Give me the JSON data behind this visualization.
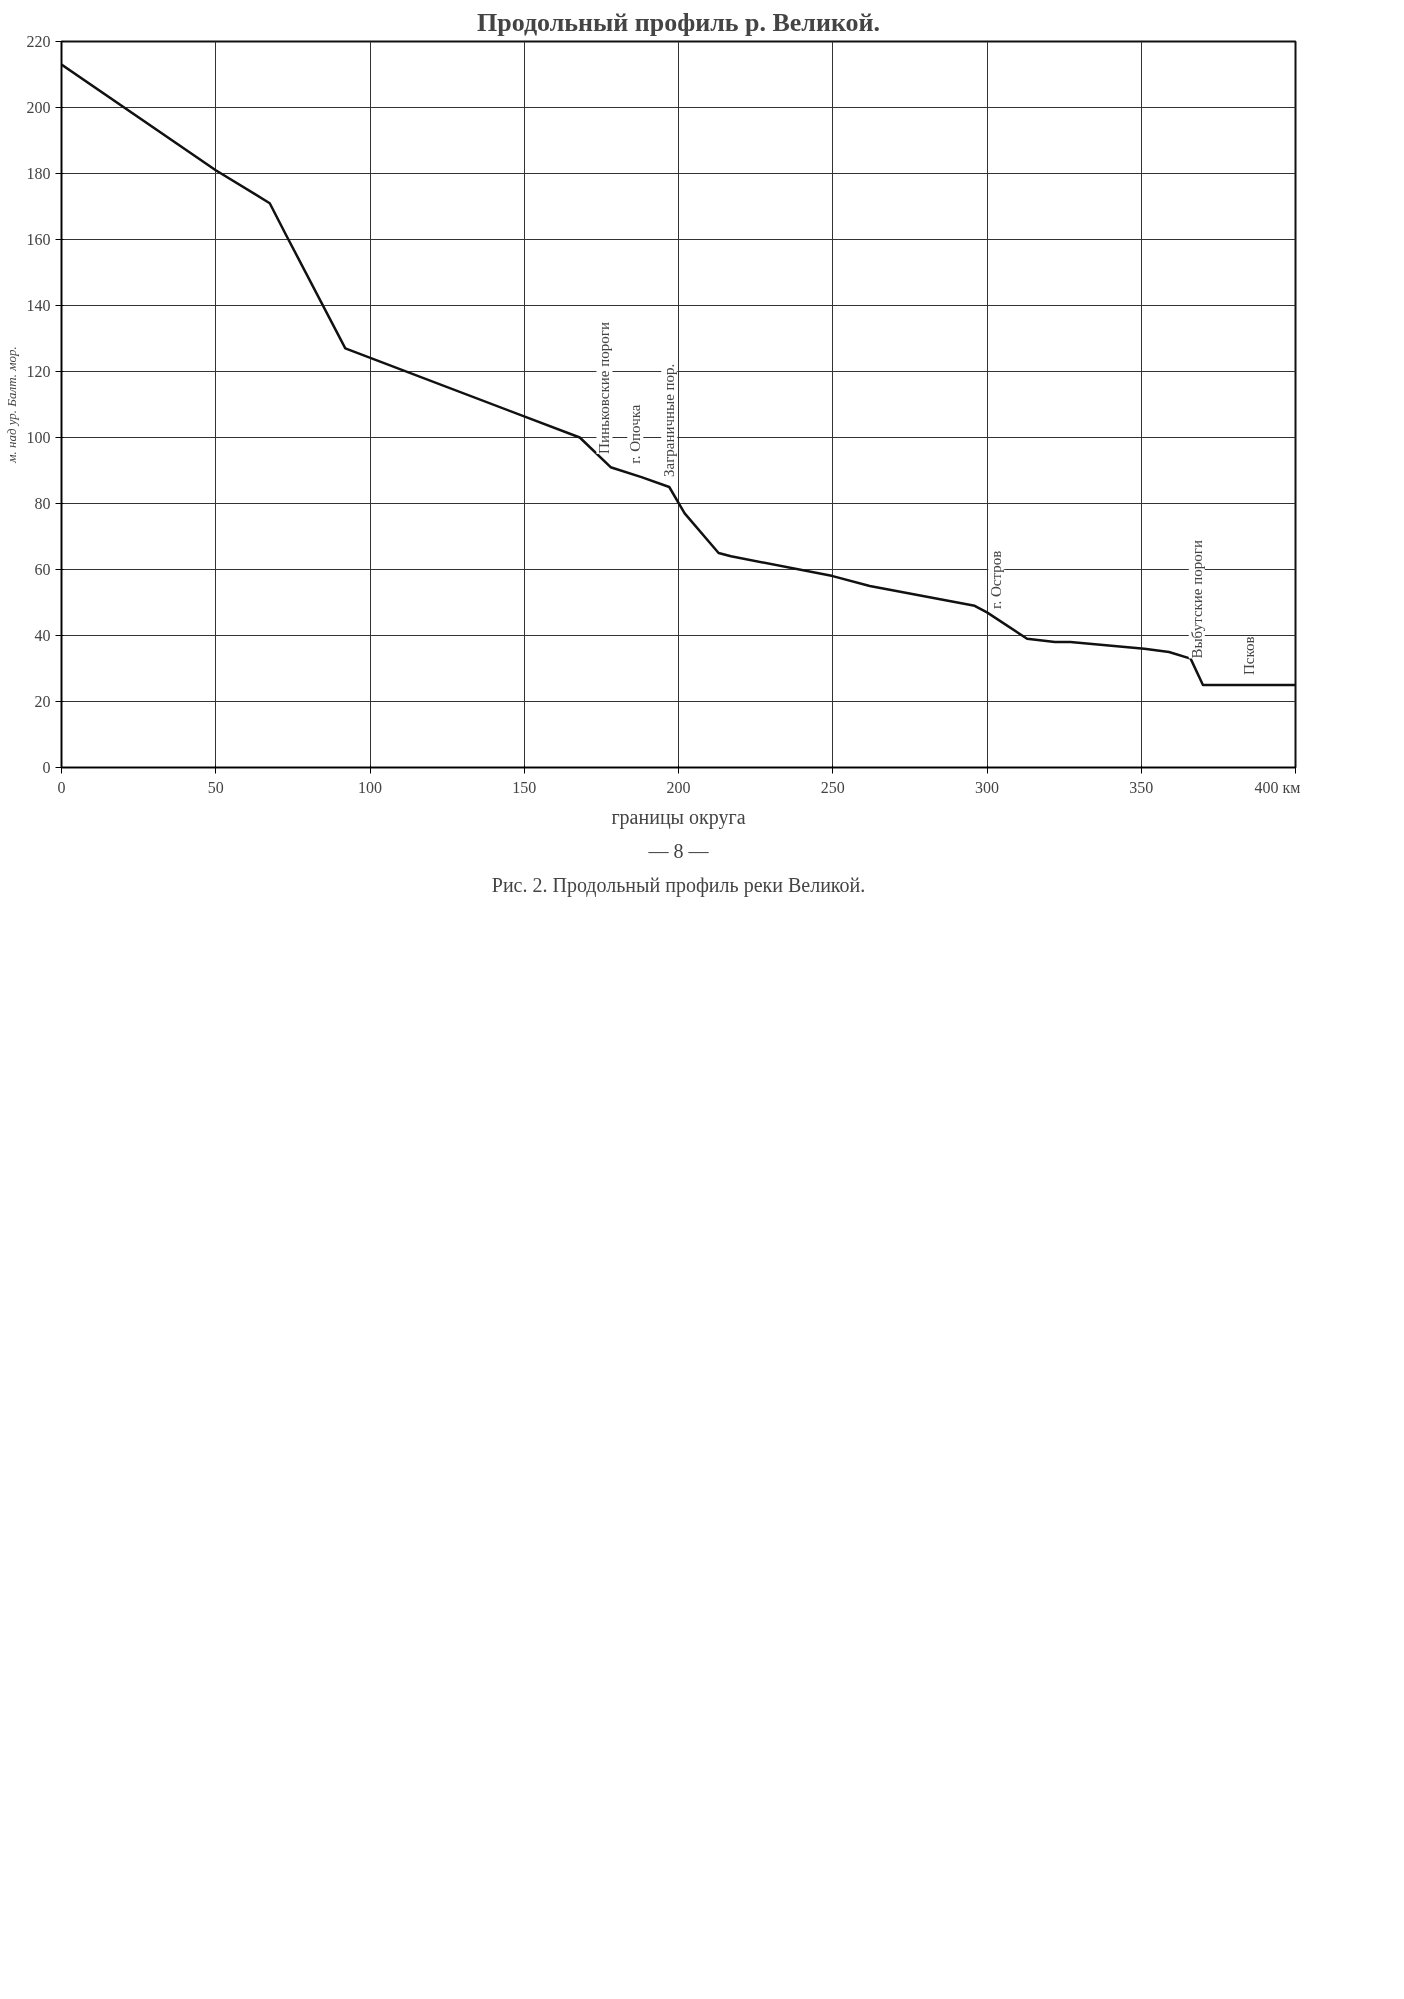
{
  "chart_data": {
    "type": "line",
    "title": "Продольный профиль р. Великой.",
    "ylabel": "м. над ур. Балт. мор.",
    "x": [
      0,
      50,
      67.5,
      73,
      92,
      168,
      178,
      188,
      197,
      202,
      213,
      217,
      250,
      262,
      296,
      300,
      313,
      322,
      327,
      351,
      359,
      366,
      370,
      400
    ],
    "series": [
      {
        "color": "#111111",
        "values": [
          213,
          181,
          171,
          161,
          127,
          100,
          91,
          88,
          85,
          77,
          65,
          64,
          58,
          55,
          49,
          47,
          39,
          38,
          38,
          36,
          35,
          33,
          25,
          25
        ]
      }
    ],
    "xlim": [
      0,
      400
    ],
    "xticks": [
      0,
      50,
      100,
      150,
      200,
      250,
      300,
      350,
      {
        "value": 400,
        "label": "400 км"
      }
    ],
    "ylim": [
      0,
      220
    ],
    "yticks": [
      0,
      20,
      40,
      60,
      80,
      100,
      120,
      140,
      160,
      180,
      200,
      220
    ],
    "grid": true,
    "marker": "none",
    "line_style": "solid",
    "annotations": [
      {
        "text": "Псков",
        "x": 385,
        "y": 25
      },
      {
        "text": "Выбутские пороги",
        "x": 368,
        "y": 30
      },
      {
        "text": "г. Остров",
        "x": 303,
        "y": 45
      },
      {
        "text": "Заграничные пор.",
        "x": 197,
        "y": 85
      },
      {
        "text": "г. Опочка",
        "x": 186,
        "y": 89
      },
      {
        "text": "Пиньковские пороги",
        "x": 176,
        "y": 92
      },
      "границы округа",
      "— 8 —",
      "Рис. 2. Продольный профиль реки Великой."
    ]
  }
}
